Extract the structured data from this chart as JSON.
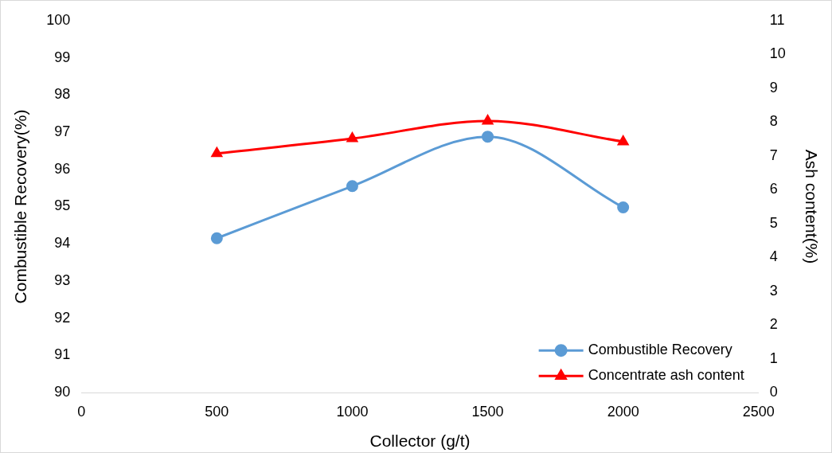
{
  "chart_data": {
    "type": "line",
    "xlabel": "Collector (g/t)",
    "ylabel": "Combustible Recovery(%)",
    "y2label": "Ash content(%)",
    "x": [
      500,
      1000,
      1500,
      2000
    ],
    "xlim": [
      0,
      2500
    ],
    "xticks": [
      0,
      500,
      1000,
      1500,
      2000,
      2500
    ],
    "ylim": [
      90,
      100
    ],
    "yticks": [
      90,
      91,
      92,
      93,
      94,
      95,
      96,
      97,
      98,
      99,
      100
    ],
    "y2lim": [
      0,
      11
    ],
    "y2ticks": [
      0,
      1,
      2,
      3,
      4,
      5,
      6,
      7,
      8,
      9,
      10,
      11
    ],
    "grid": false,
    "legend": "bottom right",
    "series": [
      {
        "name": "Combustible Recovery",
        "color": "#5b9bd5",
        "marker": "circle",
        "values": [
          94.15,
          95.55,
          96.88,
          94.98
        ]
      },
      {
        "name": "Concentrate ash content",
        "color": "#ff0000",
        "marker": "triangle",
        "axis": "y2",
        "values": [
          7.07,
          7.51,
          8.03,
          7.42
        ]
      }
    ]
  }
}
